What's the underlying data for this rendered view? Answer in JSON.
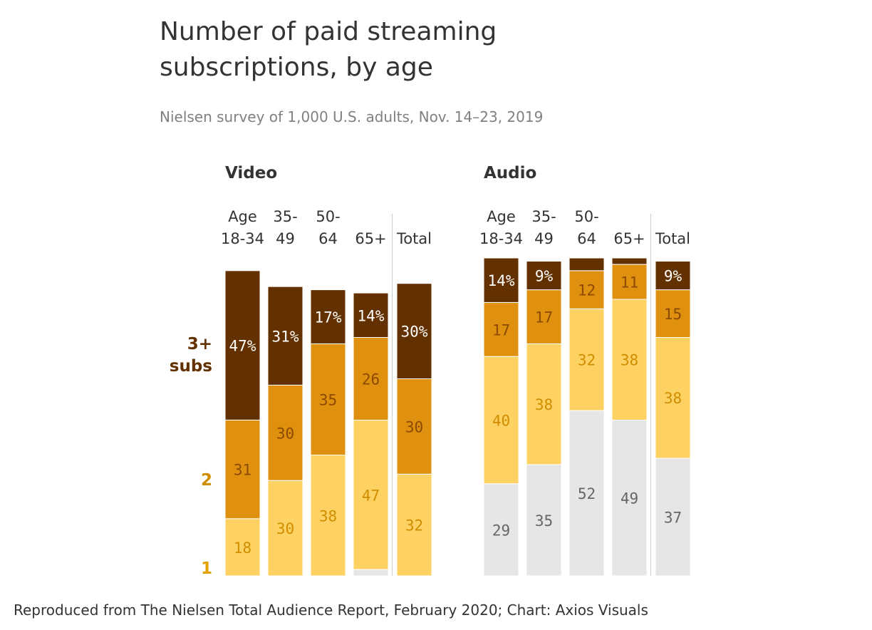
{
  "chart_data": {
    "type": "bar",
    "title": "Number of paid streaming subscriptions, by age",
    "subtitle": "Nielsen survey of 1,000 U.S. adults, Nov. 14–23, 2019",
    "source": "Reproduced from The Nielsen Total Audience Report, February 2020; Chart: Axios Visuals",
    "row_labels": {
      "three_plus_line1": "3+",
      "three_plus_line2": "subs",
      "two": "2",
      "one": "1"
    },
    "colors": {
      "three_plus": "#633100",
      "two": "#E0900F",
      "one": "#FDD263",
      "none": "#E6E6E7"
    },
    "label_colors": {
      "three_plus": "#ffffff",
      "two": "#8a4a00",
      "one": "#d08d00",
      "none": "#666666"
    },
    "panels": [
      {
        "name": "Video",
        "categories": [
          {
            "line1": "Age",
            "line2": "18-34",
            "values": {
              "three_plus": 47,
              "two": 31,
              "one": 18,
              "none": 0
            },
            "labels": {
              "three_plus": "47%",
              "two": "31",
              "one": "18",
              "none": ""
            }
          },
          {
            "line1": "35-",
            "line2": "49",
            "values": {
              "three_plus": 31,
              "two": 30,
              "one": 30,
              "none": 0
            },
            "labels": {
              "three_plus": "31%",
              "two": "30",
              "one": "30",
              "none": ""
            }
          },
          {
            "line1": "50-",
            "line2": "64",
            "values": {
              "three_plus": 17,
              "two": 35,
              "one": 38,
              "none": 0
            },
            "labels": {
              "three_plus": "17%",
              "two": "35",
              "one": "38",
              "none": ""
            }
          },
          {
            "line1": "",
            "line2": "65+",
            "values": {
              "three_plus": 14,
              "two": 26,
              "one": 47,
              "none": 2
            },
            "labels": {
              "three_plus": "14%",
              "two": "26",
              "one": "47",
              "none": ""
            }
          },
          {
            "line1": "",
            "line2": "Total",
            "values": {
              "three_plus": 30,
              "two": 30,
              "one": 32,
              "none": 0
            },
            "labels": {
              "three_plus": "30%",
              "two": "30",
              "one": "32",
              "none": ""
            }
          }
        ]
      },
      {
        "name": "Audio",
        "categories": [
          {
            "line1": "Age",
            "line2": "18-34",
            "values": {
              "three_plus": 14,
              "two": 17,
              "one": 40,
              "none": 29
            },
            "labels": {
              "three_plus": "14%",
              "two": "17",
              "one": "40",
              "none": "29"
            }
          },
          {
            "line1": "35-",
            "line2": "49",
            "values": {
              "three_plus": 9,
              "two": 17,
              "one": 38,
              "none": 35
            },
            "labels": {
              "three_plus": "9%",
              "two": "17",
              "one": "38",
              "none": "35"
            }
          },
          {
            "line1": "50-",
            "line2": "64",
            "values": {
              "three_plus": 4,
              "two": 12,
              "one": 32,
              "none": 52
            },
            "labels": {
              "three_plus": "",
              "two": "12",
              "one": "32",
              "none": "52"
            }
          },
          {
            "line1": "",
            "line2": "65+",
            "values": {
              "three_plus": 2,
              "two": 11,
              "one": 38,
              "none": 49
            },
            "labels": {
              "three_plus": "",
              "two": "11",
              "one": "38",
              "none": "49"
            }
          },
          {
            "line1": "",
            "line2": "Total",
            "values": {
              "three_plus": 9,
              "two": 15,
              "one": 38,
              "none": 37
            },
            "labels": {
              "three_plus": "9%",
              "two": "15",
              "one": "38",
              "none": "37"
            }
          }
        ]
      }
    ]
  }
}
